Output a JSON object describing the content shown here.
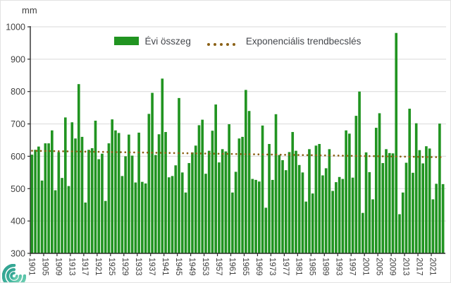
{
  "header": {
    "unit_label": "mm"
  },
  "legend": {
    "series1": "Évi összeg",
    "series2": "Exponenciális trendbecslés",
    "trend_dot_count": 5
  },
  "colors": {
    "bar": "#219421",
    "trend": "#8B6116",
    "grid": "#D9D9D9",
    "axis": "#2B2B2B",
    "text": "#404040",
    "logo_teal_dark": "#2E9E8F",
    "logo_teal_light": "#5BC4A8"
  },
  "chart_data": {
    "type": "bar",
    "title": "",
    "ylabel": "mm",
    "xlabel": "",
    "ylim": [
      300,
      1000
    ],
    "ytick_step": 100,
    "ytick_labels": [
      "300",
      "400",
      "500",
      "600",
      "700",
      "800",
      "900",
      "1000"
    ],
    "grid": true,
    "legend_position": "top-center",
    "x_first_year": 1901,
    "x_last_year": 2024,
    "xtick_label_interval": 4,
    "xtick_labels": [
      "1901",
      "1905",
      "1909",
      "1913",
      "1917",
      "1921",
      "1925",
      "1929",
      "1933",
      "1937",
      "1941",
      "1945",
      "1949",
      "1953",
      "1957",
      "1961",
      "1965",
      "1969",
      "1973",
      "1977",
      "1981",
      "1985",
      "1989",
      "1993",
      "1997",
      "2001",
      "2005",
      "2009",
      "2013",
      "2017",
      "2021"
    ],
    "series": [
      {
        "name": "Évi összeg",
        "type": "bar",
        "values": [
          605,
          620,
          630,
          525,
          640,
          640,
          680,
          495,
          613,
          533,
          720,
          508,
          705,
          655,
          823,
          660,
          457,
          620,
          625,
          710,
          591,
          608,
          462,
          640,
          714,
          680,
          672,
          539,
          600,
          667,
          602,
          519,
          673,
          521,
          516,
          731,
          796,
          604,
          668,
          840,
          675,
          535,
          539,
          572,
          780,
          550,
          488,
          579,
          612,
          633,
          696,
          713,
          546,
          617,
          679,
          760,
          581,
          622,
          615,
          699,
          488,
          552,
          655,
          660,
          805,
          740,
          530,
          527,
          522,
          695,
          441,
          638,
          527,
          730,
          604,
          588,
          557,
          613,
          675,
          617,
          573,
          550,
          460,
          622,
          485,
          633,
          638,
          541,
          563,
          622,
          493,
          520,
          536,
          530,
          680,
          670,
          534,
          725,
          800,
          425,
          612,
          551,
          467,
          688,
          733,
          579,
          622,
          610,
          609,
          981,
          421,
          488,
          580,
          747,
          549,
          702,
          619,
          578,
          631,
          624,
          467,
          515,
          701,
          514
        ]
      },
      {
        "name": "Exponenciális trendbecslés",
        "type": "dotted-trend",
        "start_value": 617,
        "end_value": 597
      }
    ]
  }
}
